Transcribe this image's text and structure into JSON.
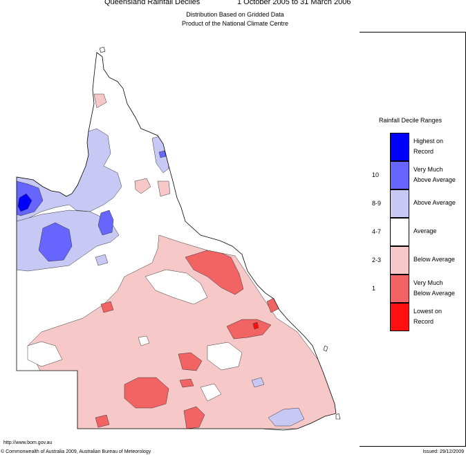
{
  "header": {
    "title": "Queensland Rainfall Deciles",
    "period": "1 October 2005 to 31 March 2006",
    "subtitle1": "Distribution Based on Gridded Data",
    "subtitle2": "Product of the National Climate Centre"
  },
  "legend": {
    "title": "Rainfall Decile Ranges",
    "items": [
      {
        "range": "",
        "label_line1": "Highest on",
        "label_line2": "Record",
        "color": "#0000ff"
      },
      {
        "range": "10",
        "label_line1": "Very Much",
        "label_line2": "Above Average",
        "color": "#6666ff"
      },
      {
        "range": "8-9",
        "label_line1": "Above Average",
        "label_line2": "",
        "color": "#c8c8f5"
      },
      {
        "range": "4-7",
        "label_line1": "Average",
        "label_line2": "",
        "color": "#ffffff"
      },
      {
        "range": "2-3",
        "label_line1": "Below Average",
        "label_line2": "",
        "color": "#f7c8c8"
      },
      {
        "range": "1",
        "label_line1": "Very Much",
        "label_line2": "Below Average",
        "color": "#f26464"
      },
      {
        "range": "",
        "label_line1": "Lowest on",
        "label_line2": "Record",
        "color": "#ff1010"
      }
    ]
  },
  "footer": {
    "url": "http://www.bom.gov.au",
    "copyright": "© Commonwealth of Australia 2009, Australian Bureau of Meteorology",
    "issued": "Issued: 29/12/2009"
  }
}
